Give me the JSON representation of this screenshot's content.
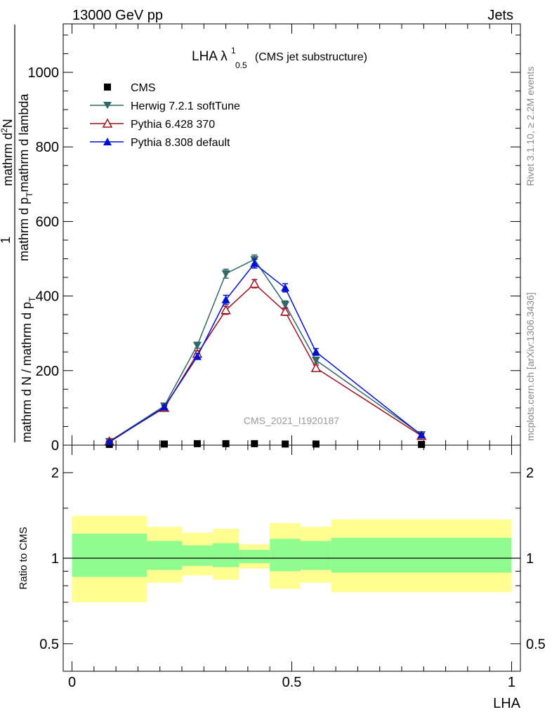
{
  "header": {
    "left": "13000 GeV pp",
    "right": "Jets"
  },
  "side_labels": {
    "rivet": "Rivet 3.1.10, ≥ 2.2M events",
    "mcplots": "mcplots.cern.ch [arXiv:1306.3436]"
  },
  "watermark": "CMS_2021_I1920187",
  "colors": {
    "cms": "#000000",
    "herwig": "#306868",
    "pythia6": "#a01020",
    "pythia8": "#0010d0",
    "band_outer": "#fffe90",
    "band_inner": "#90fc90"
  },
  "chart_data": {
    "type": "line",
    "title_main": "LHA λ",
    "title_sup": "1",
    "title_sub": "0.5",
    "title_suffix": "(CMS jet substructure)",
    "xlabel": "LHA",
    "ylabel": {
      "numerator": "1",
      "line1": "mathrm d N / mathrm d p",
      "sub1": "T",
      "line2": "mathrm d",
      "line2_suffix": "mathrm d",
      "sub2": "T",
      "full_text": "mathrm d N / mathrm d p_T mathrm d p_T mathrm d lambda",
      "top_part": "mathrm d",
      "top_sup": "2",
      "top_suffix": "N"
    },
    "ylabel_text": {
      "numerator": "1",
      "denominator_main": "mathrm d N / mathrm d p",
      "denominator_sub": "T",
      "top_line1": "mathrm d",
      "top_sup": "2",
      "top_line1_end": "N",
      "top_line2": "mathrm d p",
      "top_sub": "T",
      "top_line2_end": "mathrm d lambda"
    },
    "ylim": [
      0,
      1130
    ],
    "xlim": [
      -0.02,
      1.02
    ],
    "yticks": [
      "0",
      "200",
      "400",
      "600",
      "800",
      "1000"
    ],
    "ytick_values": [
      0,
      200,
      400,
      600,
      800,
      1000
    ],
    "xticks": [
      "0",
      "0.5",
      "1"
    ],
    "xtick_values": [
      0,
      0.5,
      1
    ],
    "bin_edges": [
      0,
      0.17,
      0.25,
      0.32,
      0.38,
      0.45,
      0.52,
      0.59,
      1.0
    ],
    "x": [
      0.085,
      0.21,
      0.285,
      0.35,
      0.415,
      0.485,
      0.555,
      0.795
    ],
    "series": [
      {
        "name": "CMS",
        "marker": "square",
        "values": [
          2,
          3,
          4,
          4,
          4,
          3,
          3,
          2
        ]
      },
      {
        "name": "Herwig 7.2.1 softTune",
        "marker": "triangle-down",
        "values": [
          10,
          105,
          268,
          460,
          498,
          377,
          228,
          28
        ],
        "errors": [
          3,
          5,
          8,
          12,
          12,
          10,
          8,
          4
        ]
      },
      {
        "name": "Pythia 6.428 370",
        "marker": "triangle-up-open",
        "values": [
          10,
          100,
          245,
          362,
          433,
          358,
          207,
          25
        ],
        "errors": [
          3,
          5,
          8,
          11,
          11,
          10,
          8,
          4
        ]
      },
      {
        "name": "Pythia 8.308 default",
        "marker": "triangle-up",
        "values": [
          8,
          102,
          238,
          390,
          487,
          422,
          250,
          27
        ],
        "errors": [
          3,
          5,
          8,
          12,
          12,
          11,
          9,
          4
        ]
      }
    ],
    "ratio": {
      "ylabel": "Ratio to CMS",
      "yticks": [
        "0.5",
        "1",
        "2"
      ],
      "ytick_values": [
        0.5,
        1,
        2
      ],
      "ylim": [
        0.4,
        2.5
      ],
      "outer_band": [
        [
          0.7,
          1.41
        ],
        [
          0.82,
          1.29
        ],
        [
          0.87,
          1.23
        ],
        [
          0.84,
          1.27
        ],
        [
          0.92,
          1.12
        ],
        [
          0.78,
          1.33
        ],
        [
          0.82,
          1.29
        ],
        [
          0.76,
          1.37
        ]
      ],
      "inner_band": [
        [
          0.86,
          1.22
        ],
        [
          0.91,
          1.15
        ],
        [
          0.94,
          1.11
        ],
        [
          0.93,
          1.13
        ],
        [
          0.96,
          1.07
        ],
        [
          0.9,
          1.17
        ],
        [
          0.91,
          1.15
        ],
        [
          0.89,
          1.18
        ]
      ]
    }
  }
}
